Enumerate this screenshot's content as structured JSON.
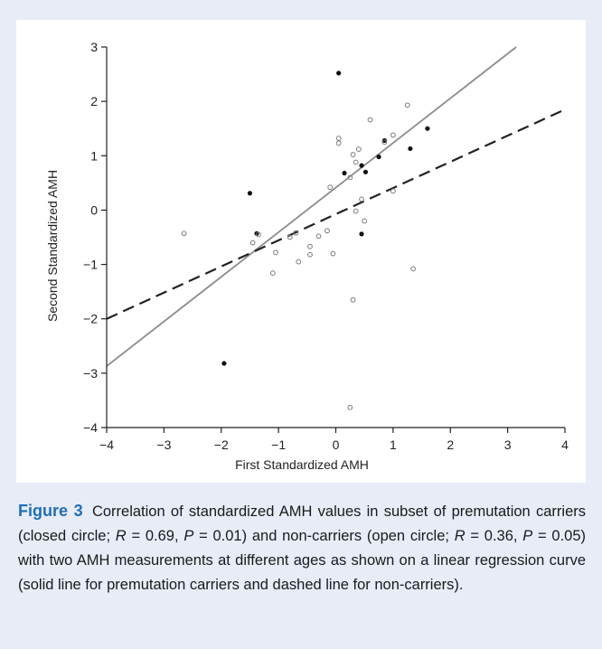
{
  "figure": {
    "label": "Figure 3",
    "caption": {
      "part1": "Correlation of standardized AMH values in subset of pre­mutation carriers (closed circle; ",
      "r1_value": " = 0.69, ",
      "p1_value": " = 0.01) and non-carriers (open circle; ",
      "r2_value": " = 0.36, ",
      "p2_value": " = 0.05) with two AMH measurements at different ages as shown on a linear regression curve (solid line for pre­mutation carriers and dashed line for non-carriers).",
      "r_symbol": "R",
      "p_symbol": "P"
    }
  },
  "chart_data": {
    "type": "scatter",
    "title": "",
    "xlabel": "First Standardized AMH",
    "ylabel": "Second Standardized AMH",
    "xlim": [
      -4,
      4
    ],
    "ylim": [
      -4,
      3
    ],
    "xticks": [
      "−4",
      "−3",
      "−2",
      "−1",
      "0",
      "1",
      "2",
      "3",
      "4"
    ],
    "yticks": [
      "−4",
      "−3",
      "−2",
      "−1",
      "0",
      "1",
      "2",
      "3"
    ],
    "grid": false,
    "series": [
      {
        "marker": "closed",
        "points": [
          [
            0.05,
            2.52
          ],
          [
            -1.5,
            0.31
          ],
          [
            -1.38,
            -0.43
          ],
          [
            -1.95,
            -2.82
          ],
          [
            0.15,
            0.68
          ],
          [
            0.45,
            0.82
          ],
          [
            0.52,
            0.7
          ],
          [
            0.75,
            0.98
          ],
          [
            0.85,
            1.28
          ],
          [
            1.3,
            1.13
          ],
          [
            1.6,
            1.5
          ],
          [
            0.45,
            -0.44
          ]
        ],
        "fit": {
          "style": "solid",
          "x": [
            -4,
            3.15
          ],
          "y": [
            -2.87,
            3.0
          ],
          "color": "#8c8c8c"
        }
      },
      {
        "marker": "open",
        "points": [
          [
            -2.65,
            -0.43
          ],
          [
            -1.45,
            -0.6
          ],
          [
            -1.35,
            -0.45
          ],
          [
            -1.05,
            -0.78
          ],
          [
            -1.1,
            -1.16
          ],
          [
            -0.8,
            -0.5
          ],
          [
            -0.7,
            -0.42
          ],
          [
            -0.65,
            -0.95
          ],
          [
            -0.45,
            -0.82
          ],
          [
            -0.45,
            -0.67
          ],
          [
            -0.3,
            -0.48
          ],
          [
            -0.15,
            -0.38
          ],
          [
            -0.05,
            -0.8
          ],
          [
            -0.1,
            0.42
          ],
          [
            0.05,
            1.23
          ],
          [
            0.05,
            1.32
          ],
          [
            0.3,
            1.02
          ],
          [
            0.4,
            1.12
          ],
          [
            0.35,
            0.88
          ],
          [
            0.45,
            0.2
          ],
          [
            0.35,
            -0.02
          ],
          [
            0.5,
            -0.2
          ],
          [
            0.6,
            1.66
          ],
          [
            0.85,
            1.25
          ],
          [
            1.0,
            1.38
          ],
          [
            1.0,
            0.35
          ],
          [
            1.25,
            1.93
          ],
          [
            1.35,
            -1.08
          ],
          [
            0.3,
            -1.65
          ],
          [
            0.25,
            0.6
          ],
          [
            0.25,
            -3.63
          ]
        ],
        "fit": {
          "style": "dashed",
          "x": [
            -4,
            4
          ],
          "y": [
            -2.0,
            1.85
          ],
          "color": "#222222"
        }
      }
    ]
  }
}
